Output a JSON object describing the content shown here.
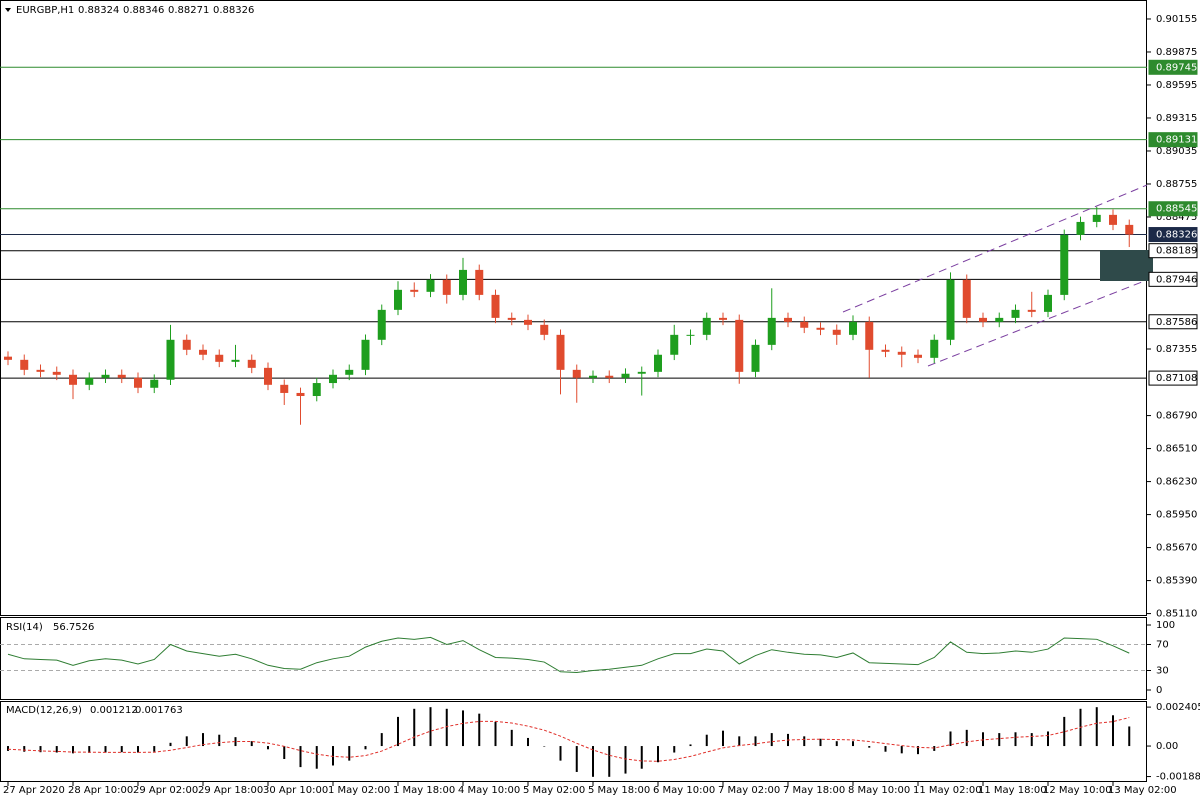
{
  "chart_data": [
    {
      "type": "candlestick",
      "symbol": "EURGBP,H1",
      "ohlc": [
        0.88324,
        0.88346,
        0.88271,
        0.88326
      ],
      "categories": [
        "27 Apr 2020",
        null,
        null,
        null,
        "28 Apr 10:00",
        null,
        null,
        null,
        "29 Apr 02:00",
        null,
        null,
        null,
        "29 Apr 18:00",
        null,
        null,
        null,
        "30 Apr 10:00",
        null,
        null,
        null,
        "1 May 02:00",
        null,
        null,
        null,
        "1 May 18:00",
        null,
        null,
        null,
        "4 May 10:00",
        null,
        null,
        null,
        "5 May 02:00",
        null,
        null,
        null,
        "5 May 18:00",
        null,
        null,
        null,
        "6 May 10:00",
        null,
        null,
        null,
        "7 May 02:00",
        null,
        null,
        null,
        "7 May 18:00",
        null,
        null,
        null,
        "8 May 10:00",
        null,
        null,
        null,
        "11 May 02:00",
        null,
        null,
        null,
        "11 May 18:00",
        null,
        null,
        null,
        "12 May 10:00",
        null,
        null,
        null,
        "13 May 02:00",
        null
      ],
      "open": [
        0.8729,
        0.87263,
        0.87178,
        0.87161,
        0.87136,
        0.87051,
        0.87111,
        0.87136,
        0.87111,
        0.87026,
        0.87094,
        0.87433,
        0.87348,
        0.87306,
        0.87246,
        0.87263,
        0.87195,
        0.87051,
        0.86982,
        0.86956,
        0.87066,
        0.87136,
        0.87178,
        0.87433,
        0.87687,
        0.87857,
        0.8784,
        0.87942,
        0.87814,
        0.88026,
        0.87814,
        0.87619,
        0.87602,
        0.8756,
        0.87475,
        0.87178,
        0.87111,
        0.87128,
        0.87111,
        0.87145,
        0.87161,
        0.87306,
        0.87475,
        0.87475,
        0.87619,
        0.87602,
        0.87161,
        0.8739,
        0.87619,
        0.87585,
        0.87535,
        0.87518,
        0.87475,
        0.87585,
        0.87348,
        0.87331,
        0.87306,
        0.8728,
        0.87433,
        0.87942,
        0.87619,
        0.87585,
        0.87619,
        0.87687,
        0.8767,
        0.87814,
        0.88323,
        0.88433,
        0.88493,
        0.88408
      ],
      "high": [
        0.87335,
        0.87308,
        0.87223,
        0.87206,
        0.87181,
        0.87156,
        0.87181,
        0.87181,
        0.87156,
        0.87139,
        0.8756,
        0.87478,
        0.87393,
        0.87351,
        0.8739,
        0.87308,
        0.8724,
        0.87096,
        0.87027,
        0.87111,
        0.87181,
        0.87223,
        0.87478,
        0.87732,
        0.8793,
        0.8792,
        0.8799,
        0.87987,
        0.88128,
        0.88071,
        0.87859,
        0.87664,
        0.87647,
        0.87605,
        0.8752,
        0.87223,
        0.87173,
        0.87173,
        0.8719,
        0.87206,
        0.87351,
        0.8756,
        0.8752,
        0.87664,
        0.87664,
        0.87647,
        0.87435,
        0.8787,
        0.87664,
        0.8763,
        0.8758,
        0.87563,
        0.8764,
        0.8763,
        0.87393,
        0.87376,
        0.87351,
        0.87478,
        0.88005,
        0.87987,
        0.87664,
        0.87664,
        0.87732,
        0.8784,
        0.87859,
        0.88368,
        0.88478,
        0.88561,
        0.88538,
        0.88453
      ],
      "low": [
        0.87218,
        0.87133,
        0.87116,
        0.87091,
        0.8693,
        0.87006,
        0.87066,
        0.87066,
        0.86981,
        0.86981,
        0.87049,
        0.87303,
        0.87261,
        0.87201,
        0.87201,
        0.8715,
        0.87006,
        0.8688,
        0.86712,
        0.86911,
        0.87021,
        0.87091,
        0.87133,
        0.87388,
        0.87642,
        0.87795,
        0.87795,
        0.8774,
        0.87769,
        0.87769,
        0.87574,
        0.87557,
        0.87515,
        0.8743,
        0.8697,
        0.86899,
        0.87066,
        0.87066,
        0.87066,
        0.8696,
        0.87116,
        0.87261,
        0.8739,
        0.8743,
        0.87557,
        0.8706,
        0.87116,
        0.87345,
        0.8754,
        0.8749,
        0.87473,
        0.8739,
        0.8743,
        0.87111,
        0.87286,
        0.872,
        0.87235,
        0.87235,
        0.87388,
        0.87574,
        0.8754,
        0.8754,
        0.87574,
        0.87625,
        0.87625,
        0.87769,
        0.88278,
        0.88388,
        0.88363,
        0.8822
      ],
      "close": [
        0.87263,
        0.87178,
        0.87161,
        0.87136,
        0.87051,
        0.87111,
        0.87136,
        0.87111,
        0.87026,
        0.87094,
        0.87433,
        0.87348,
        0.87306,
        0.87246,
        0.87263,
        0.87195,
        0.87051,
        0.86982,
        0.86956,
        0.87066,
        0.87136,
        0.87178,
        0.87433,
        0.87687,
        0.87857,
        0.8784,
        0.87942,
        0.87814,
        0.88026,
        0.87814,
        0.87619,
        0.87602,
        0.8756,
        0.87475,
        0.87178,
        0.87111,
        0.87128,
        0.87111,
        0.87145,
        0.87161,
        0.87306,
        0.87475,
        0.87475,
        0.87619,
        0.87602,
        0.87161,
        0.8739,
        0.87619,
        0.87585,
        0.87535,
        0.87518,
        0.87475,
        0.87585,
        0.87348,
        0.87331,
        0.87306,
        0.8728,
        0.87433,
        0.87942,
        0.87619,
        0.87585,
        0.87619,
        0.87687,
        0.8767,
        0.87814,
        0.88323,
        0.88433,
        0.88493,
        0.88408,
        0.88326
      ],
      "up_color": "#1e9e1e",
      "down_color": "#e04b2e",
      "ylim": [
        0.85098,
        0.90316
      ],
      "yticks": [
        0.90155,
        0.89875,
        0.89595,
        0.89315,
        0.89035,
        0.88755,
        0.88475,
        0.87355,
        {
          "value": 0.8679,
          "label": "0.86790"
        },
        {
          "value": 0.8651,
          "label": "0.86510"
        },
        {
          "value": 0.8623,
          "label": "0.86230"
        },
        {
          "value": 0.8595,
          "label": "0.85950"
        },
        {
          "value": 0.8567,
          "label": "0.85670"
        },
        {
          "value": 0.8539,
          "label": "0.85390"
        },
        {
          "value": 0.8511,
          "label": "0.85110"
        }
      ],
      "levels": [
        {
          "value": 0.89745,
          "color": "#2e8b2e",
          "text_color": "#ffffff"
        },
        {
          "value": 0.89131,
          "color": "#2e8b2e",
          "text_color": "#ffffff"
        },
        {
          "value": 0.88545,
          "color": "#2e8b2e",
          "text_color": "#ffffff"
        },
        {
          "value": 0.88326,
          "color": "#1c2a48",
          "text_color": "#ffffff"
        },
        {
          "value": 0.88189,
          "color": "#000000",
          "text_color": "#000000"
        },
        {
          "value": 0.87946,
          "color": "#000000",
          "text_color": "#000000"
        },
        {
          "value": 0.87586,
          "color": "#000000",
          "text_color": "#000000"
        },
        {
          "value": 0.87108,
          "color": "#000000",
          "text_color": "#000000"
        }
      ]
    },
    {
      "type": "line",
      "title": "RSI(14)",
      "current": 56.7526,
      "color": "#2e7d32",
      "values": [
        55,
        48,
        47,
        46,
        38,
        45,
        48,
        46,
        40,
        47,
        70,
        60,
        56,
        52,
        55,
        48,
        38,
        33,
        32,
        42,
        48,
        52,
        66,
        75,
        80,
        78,
        81,
        70,
        76,
        62,
        50,
        49,
        47,
        43,
        28,
        27,
        30,
        32,
        35,
        38,
        48,
        56,
        56,
        63,
        60,
        40,
        53,
        62,
        58,
        55,
        54,
        50,
        57,
        42,
        41,
        40,
        39,
        50,
        74,
        58,
        56,
        57,
        60,
        58,
        63,
        80,
        79,
        78,
        68,
        56.75
      ],
      "ylim": [
        -15.4,
        110.8
      ],
      "yticks": [
        100,
        70,
        30,
        0
      ],
      "levels": [
        70,
        30
      ]
    },
    {
      "type": "macd",
      "title": "MACD(12,26,9)",
      "current": 0.001212,
      "current_signal": 0.001763,
      "color": "#000000",
      "signal_color": "#e0302a",
      "values": [
        -0.0003,
        -0.00035,
        -0.00038,
        -0.0004,
        -0.00045,
        -0.00042,
        -0.0004,
        -0.00038,
        -0.0004,
        -0.00035,
        0.0002,
        0.0006,
        0.0008,
        0.0007,
        0.00055,
        0.0003,
        -0.0002,
        -0.0008,
        -0.0013,
        -0.0014,
        -0.0012,
        -0.0009,
        -0.0002,
        0.0008,
        0.0018,
        0.0023,
        0.0024,
        0.0023,
        0.0022,
        0.002,
        0.0015,
        0.001,
        0.0005,
        0,
        -0.0009,
        -0.0016,
        -0.0019,
        -0.0019,
        -0.0017,
        -0.0014,
        -0.001,
        -0.0004,
        0.0001,
        0.0007,
        0.00095,
        0.0006,
        0.0006,
        0.0008,
        0.00075,
        0.0006,
        0.00045,
        0.0003,
        0.0003,
        -0.0001,
        -0.00035,
        -0.00045,
        -0.0005,
        -0.0003,
        0.0009,
        0.001,
        0.00085,
        0.0008,
        0.00085,
        0.0008,
        0.0009,
        0.0018,
        0.0023,
        0.0024,
        0.0019,
        0.00121
      ],
      "signal": [
        -0.0002,
        -0.00025,
        -0.0003,
        -0.00033,
        -0.00037,
        -0.00038,
        -0.00039,
        -0.00039,
        -0.00039,
        -0.00038,
        -0.00026,
        -9e-05,
        9e-05,
        0.00021,
        0.00028,
        0.00028,
        0.00018,
        -2e-05,
        -0.00028,
        -0.0005,
        -0.00064,
        -0.00069,
        -0.00059,
        -0.00031,
        0.00011,
        0.00055,
        0.00092,
        0.0012,
        0.0014,
        0.00152,
        0.00152,
        0.00142,
        0.00123,
        0.00098,
        0.00061,
        0.00017,
        -0.00024,
        -0.00057,
        -0.0008,
        -0.00092,
        -0.00094,
        -0.00083,
        -0.00064,
        -0.00037,
        -0.00011,
        3e-05,
        0.00014,
        0.00027,
        0.00037,
        0.00041,
        0.00042,
        0.0004,
        0.00038,
        0.00028,
        0.00015,
        3e-05,
        -8e-05,
        -0.00012,
        8e-05,
        0.00026,
        0.00038,
        0.00046,
        0.00054,
        0.00059,
        0.00065,
        0.00088,
        0.00116,
        0.00141,
        0.00151,
        0.00176
      ],
      "ylim": [
        -0.00222,
        0.00272
      ],
      "yticks": [
        0.002405,
        {
          "value": 0,
          "label": "0.00"
        },
        -0.001884
      ]
    }
  ]
}
